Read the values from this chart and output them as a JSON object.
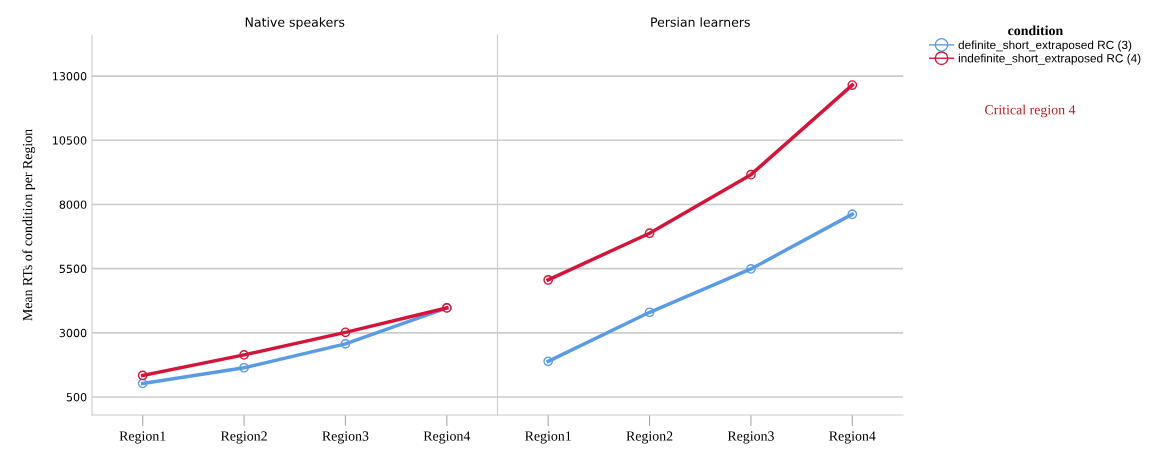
{
  "chart_data": [
    {
      "type": "line",
      "title": "Native speakers",
      "ylabel": "Mean RTs of condition per Region",
      "categories": [
        "Region1",
        "Region2",
        "Region3",
        "Region4"
      ],
      "series": [
        {
          "color": "#5b9be6",
          "values": [
            1030,
            1640,
            2570,
            3970
          ]
        },
        {
          "color": "#d4153a",
          "values": [
            1340,
            2140,
            3020,
            3970
          ]
        }
      ],
      "ylim": [
        -200,
        14600
      ],
      "yticks": [
        500,
        3000,
        5500,
        8000,
        10500,
        13000
      ],
      "grid": "y",
      "marker": "circle",
      "line_style": "solid"
    },
    {
      "type": "line",
      "title": "Persian learners",
      "categories": [
        "Region1",
        "Region2",
        "Region3",
        "Region4"
      ],
      "series": [
        {
          "name": "definite_short_extraposed RC (3)",
          "color": "#5b9be6",
          "values": [
            1890,
            3800,
            5490,
            7620
          ]
        },
        {
          "name": "indefinite_short_extraposed RC (4)",
          "color": "#d4153a",
          "values": [
            5060,
            6880,
            9160,
            12650
          ]
        }
      ],
      "ylim": [
        -200,
        14600
      ],
      "yticks": [
        500,
        3000,
        5500,
        8000,
        10500,
        13000
      ],
      "grid": "y",
      "marker": "circle",
      "line_style": "solid",
      "tick_labels": "x",
      "legend": "top right",
      "legend_title": "condition",
      "annotations": [
        "Critical region 4"
      ]
    }
  ]
}
